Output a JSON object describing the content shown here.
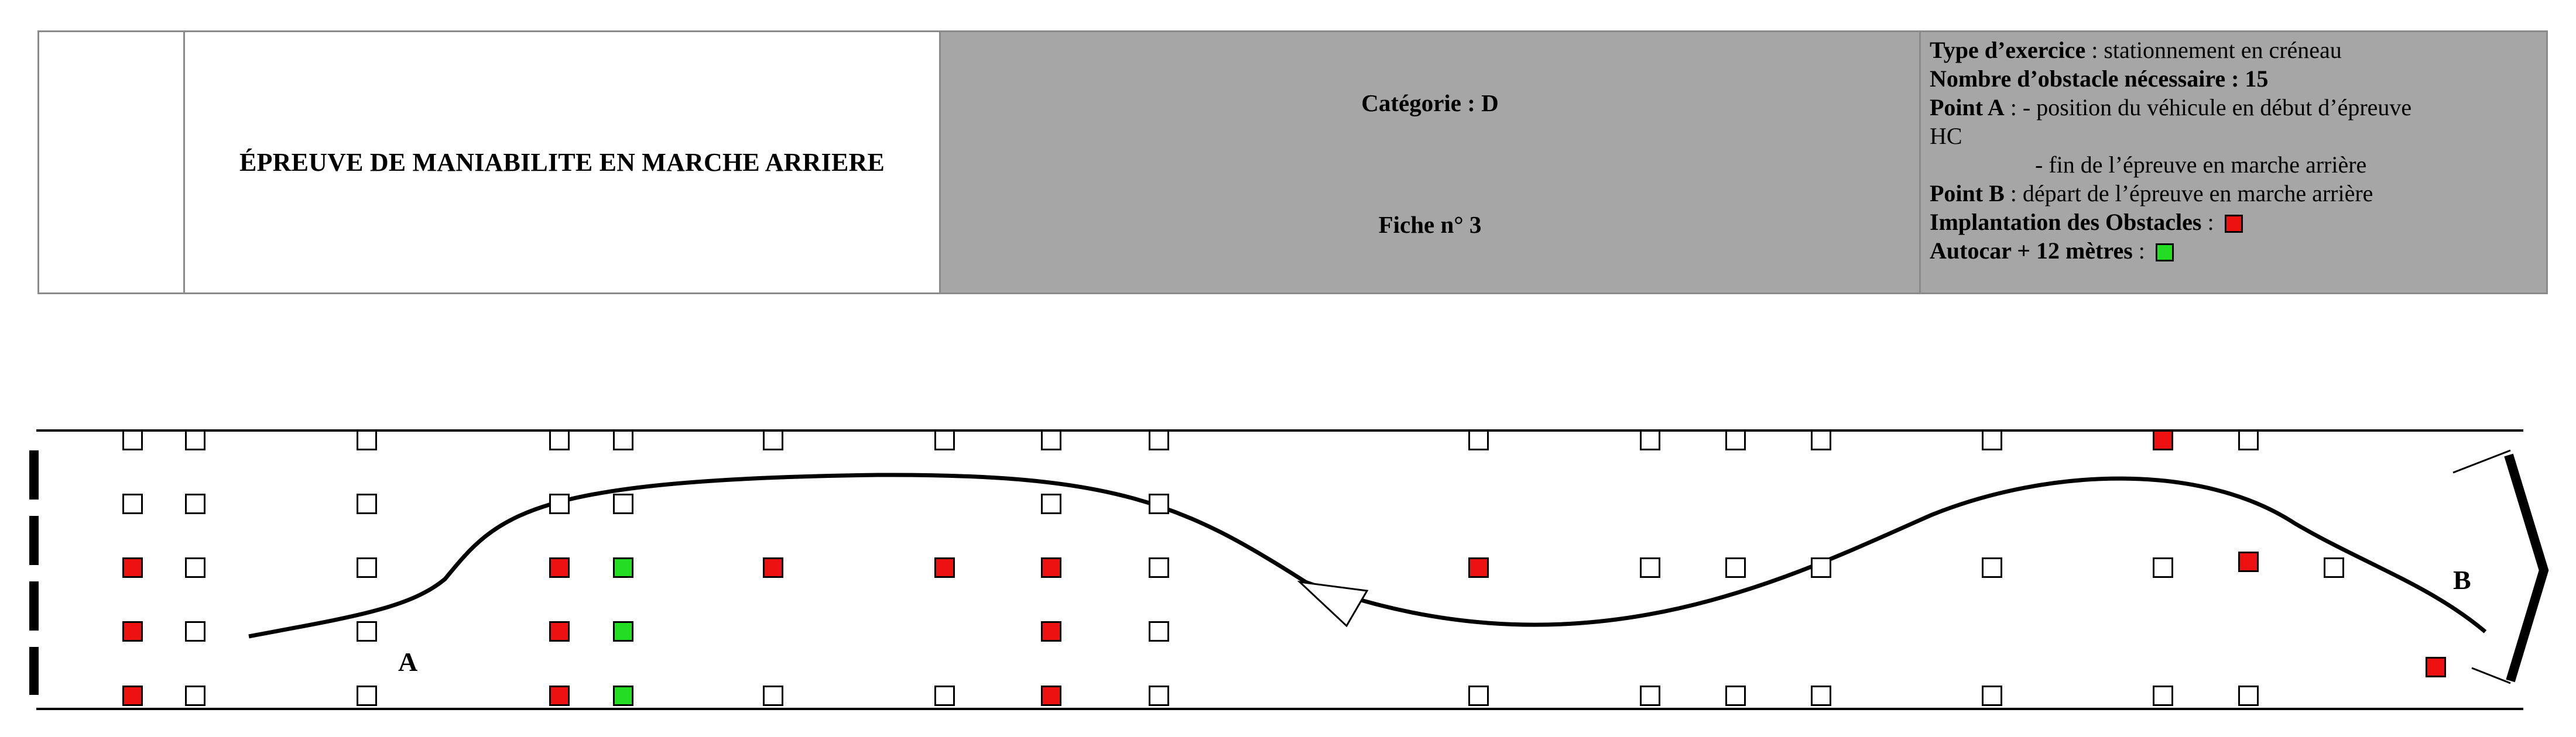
{
  "header": {
    "title": "ÉPREUVE DE MANIABILITE EN MARCHE ARRIERE",
    "categorie": "Catégorie : D",
    "fiche": "Fiche n° 3",
    "info": {
      "type_label": "Type d’exercice",
      "type_value": " : stationnement en créneau",
      "obstacles_label": "Nombre d’obstacle nécessaire",
      "obstacles_value": " : 15",
      "pointA_label": "Point A",
      "pointA_value": " : - position du véhicule en début d’épreuve",
      "hc": "HC",
      "pointA_end": "- fin de l’épreuve en marche arrière",
      "pointB_label": "Point B",
      "pointB_value": " : départ de l’épreuve en marche arrière",
      "implantation_label": "Implantation des Obstacles",
      "implantation_sep": " : ",
      "autocar_label": "Autocar + 12 mètres",
      "autocar_sep": " : "
    }
  },
  "diagram": {
    "point_a": "A",
    "point_b": "B",
    "colors": {
      "obstacle": "#ee1111",
      "autocar": "#22dd22",
      "empty": "#ffffff"
    }
  }
}
